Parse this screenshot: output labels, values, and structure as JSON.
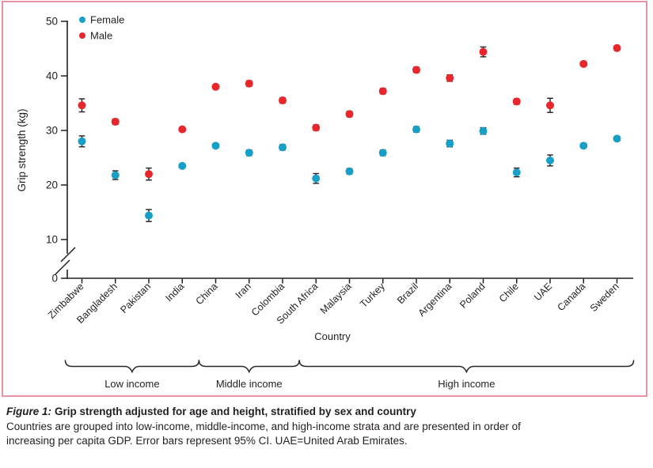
{
  "panel": {
    "border_color": "#e893a4",
    "background": "#ffffff"
  },
  "chart_data": {
    "type": "scatter",
    "title": "",
    "xlabel": "Country",
    "ylabel": "Grip strength (kg)",
    "ylim": [
      0,
      50
    ],
    "yticks": [
      0,
      10,
      20,
      30,
      40,
      50
    ],
    "y_axis_break_between": [
      0,
      10
    ],
    "grid": false,
    "legend_position": "top-left",
    "point_color_female": "#189fc7",
    "point_color_male": "#e8262b",
    "categories": [
      "Zimbabwe",
      "Bangladesh",
      "Pakistan",
      "India",
      "China",
      "Iran",
      "Colombia",
      "South Africa",
      "Malaysia",
      "Turkey",
      "Brazil",
      "Argentina",
      "Poland",
      "Chile",
      "UAE",
      "Canada",
      "Sweden"
    ],
    "series": [
      {
        "name": "Female",
        "color": "#189fc7",
        "values": [
          28.0,
          21.8,
          14.4,
          23.5,
          27.2,
          25.9,
          26.9,
          21.2,
          22.5,
          25.9,
          30.2,
          27.6,
          29.9,
          22.3,
          24.5,
          27.2,
          28.5
        ],
        "ci95_halfwidth": [
          1.0,
          0.8,
          1.1,
          0.4,
          0.4,
          0.5,
          0.5,
          0.9,
          0.5,
          0.5,
          0.5,
          0.6,
          0.6,
          0.8,
          1.0,
          0.4,
          0.4
        ]
      },
      {
        "name": "Male",
        "color": "#e8262b",
        "values": [
          34.6,
          31.6,
          22.0,
          30.2,
          38.0,
          38.6,
          35.5,
          30.5,
          33.0,
          37.2,
          41.1,
          39.6,
          44.4,
          35.3,
          34.6,
          42.2,
          45.1
        ],
        "ci95_halfwidth": [
          1.2,
          0.5,
          1.1,
          0.4,
          0.4,
          0.5,
          0.5,
          0.5,
          0.5,
          0.5,
          0.5,
          0.6,
          0.9,
          0.5,
          1.3,
          0.4,
          0.4
        ]
      }
    ],
    "groups": [
      {
        "label": "Low income",
        "start": "Zimbabwe",
        "end": "India"
      },
      {
        "label": "Middle income",
        "start": "China",
        "end": "Colombia"
      },
      {
        "label": "High income",
        "start": "South Africa",
        "end": "Sweden"
      }
    ]
  },
  "caption": {
    "figure_label": "Figure 1:",
    "title": "Grip strength adjusted for age and height, stratified by sex and country",
    "body": "Countries are grouped into low-income, middle-income, and high-income strata and are presented in order of increasing per capita GDP. Error bars represent 95% CI. UAE=United Arab Emirates."
  }
}
